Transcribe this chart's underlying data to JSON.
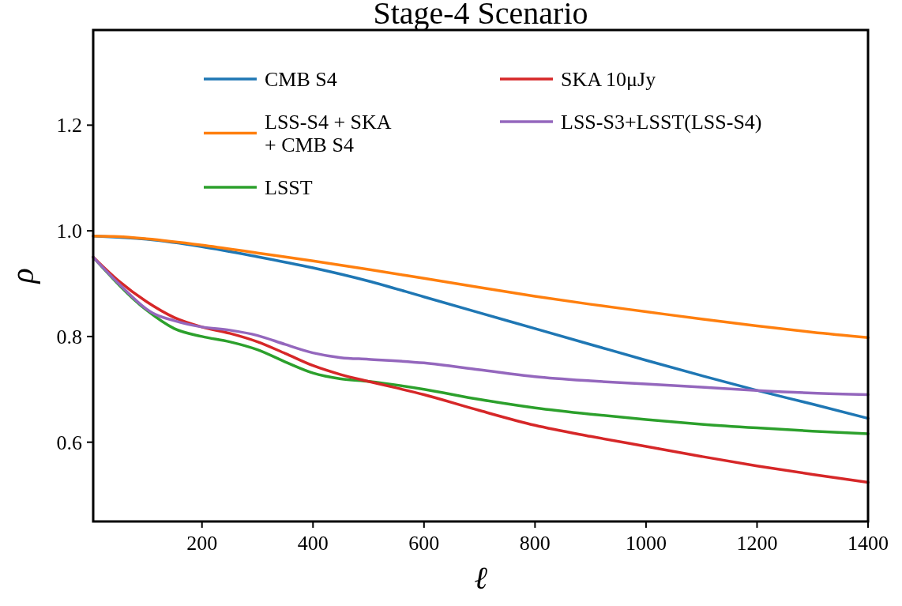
{
  "chart_data": {
    "type": "line",
    "title": "Stage-4 Scenario",
    "xlabel": "ℓ",
    "ylabel": "ρ",
    "xlim": [
      4,
      1400
    ],
    "ylim": [
      0.45,
      1.38
    ],
    "xticks": [
      200,
      400,
      600,
      800,
      1000,
      1200,
      1400
    ],
    "yticks": [
      0.6,
      0.8,
      {
        "value": 1,
        "label": "1.0"
      },
      1.2
    ],
    "grid": false,
    "legend": "top",
    "marker": "none",
    "line_style": "solid",
    "series": [
      {
        "name": "CMB S4",
        "color": "#1f77b4",
        "x": [
          4,
          100,
          200,
          300,
          400,
          500,
          600,
          700,
          800,
          900,
          1000,
          1100,
          1200,
          1300,
          1400
        ],
        "values": [
          0.99,
          0.984,
          0.97,
          0.951,
          0.93,
          0.905,
          0.875,
          0.845,
          0.815,
          0.785,
          0.755,
          0.726,
          0.698,
          0.672,
          0.645
        ]
      },
      {
        "name": "LSS-S4 + SKA\n+ CMB S4",
        "color": "#ff7f0e",
        "x": [
          4,
          50,
          100,
          200,
          300,
          400,
          500,
          600,
          700,
          800,
          900,
          1000,
          1100,
          1200,
          1300,
          1400
        ],
        "values": [
          0.99,
          0.989,
          0.985,
          0.973,
          0.958,
          0.943,
          0.927,
          0.91,
          0.893,
          0.876,
          0.861,
          0.847,
          0.833,
          0.82,
          0.808,
          0.798
        ]
      },
      {
        "name": "LSST",
        "color": "#2ca02c",
        "x": [
          4,
          100,
          150,
          200,
          250,
          300,
          350,
          400,
          450,
          500,
          600,
          700,
          800,
          900,
          1000,
          1100,
          1200,
          1300,
          1400
        ],
        "values": [
          0.95,
          0.85,
          0.815,
          0.8,
          0.79,
          0.775,
          0.752,
          0.731,
          0.72,
          0.715,
          0.7,
          0.681,
          0.665,
          0.653,
          0.643,
          0.634,
          0.627,
          0.621,
          0.616
        ]
      },
      {
        "name": "SKA 10μJy",
        "color": "#d62728",
        "x": [
          4,
          50,
          100,
          150,
          200,
          250,
          300,
          350,
          400,
          450,
          500,
          600,
          700,
          800,
          900,
          1000,
          1100,
          1200,
          1300,
          1400
        ],
        "values": [
          0.95,
          0.905,
          0.866,
          0.836,
          0.818,
          0.806,
          0.79,
          0.768,
          0.745,
          0.728,
          0.715,
          0.69,
          0.66,
          0.632,
          0.611,
          0.592,
          0.573,
          0.555,
          0.539,
          0.524
        ]
      },
      {
        "name": "LSS-S3+LSST(LSS-S4)",
        "color": "#9467bd",
        "x": [
          4,
          50,
          100,
          110,
          150,
          200,
          250,
          300,
          350,
          400,
          450,
          500,
          600,
          700,
          800,
          900,
          1000,
          1100,
          1200,
          1300,
          1400
        ],
        "values": [
          0.95,
          0.9,
          0.852,
          0.845,
          0.83,
          0.818,
          0.812,
          0.802,
          0.785,
          0.769,
          0.76,
          0.757,
          0.75,
          0.737,
          0.724,
          0.716,
          0.71,
          0.704,
          0.698,
          0.693,
          0.69
        ]
      }
    ]
  }
}
